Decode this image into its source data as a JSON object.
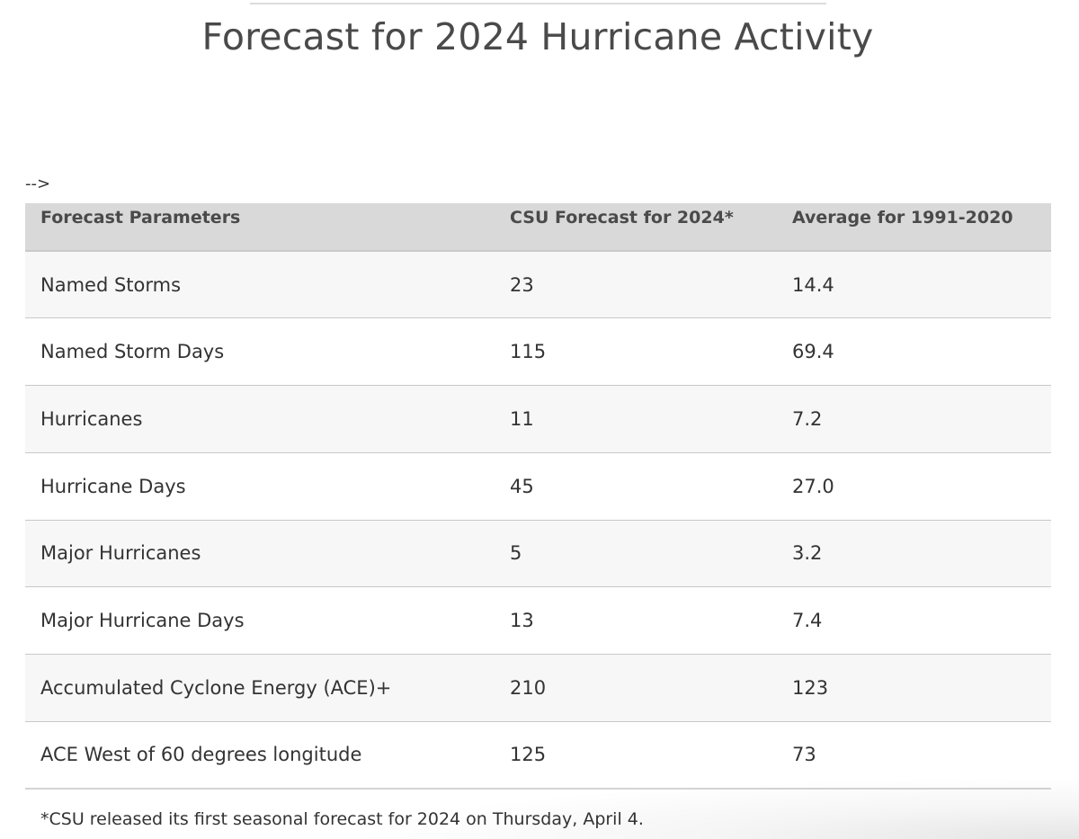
{
  "page": {
    "title": "Forecast for 2024 Hurricane Activity",
    "stray_marker": "-->"
  },
  "table": {
    "headers": [
      "Forecast Parameters",
      "CSU Forecast for 2024*",
      "Average for 1991-2020"
    ],
    "rows": [
      [
        "Named Storms",
        "23",
        "14.4"
      ],
      [
        "Named Storm Days",
        "115",
        "69.4"
      ],
      [
        "Hurricanes",
        "11",
        "7.2"
      ],
      [
        "Hurricane Days",
        "45",
        "27.0"
      ],
      [
        "Major Hurricanes",
        "5",
        "3.2"
      ],
      [
        "Major Hurricane Days",
        "13",
        "7.4"
      ],
      [
        "Accumulated Cyclone Energy (ACE)+",
        "210",
        "123"
      ],
      [
        "ACE West of 60 degrees longitude",
        "125",
        "73"
      ]
    ]
  },
  "footnote": "*CSU released its first seasonal forecast for 2024 on Thursday, April 4.",
  "colors": {
    "header_bg": "#d9d9d9",
    "row_alt_bg": "#f7f7f7",
    "row_border": "#c8c8c8",
    "text": "#333333"
  }
}
